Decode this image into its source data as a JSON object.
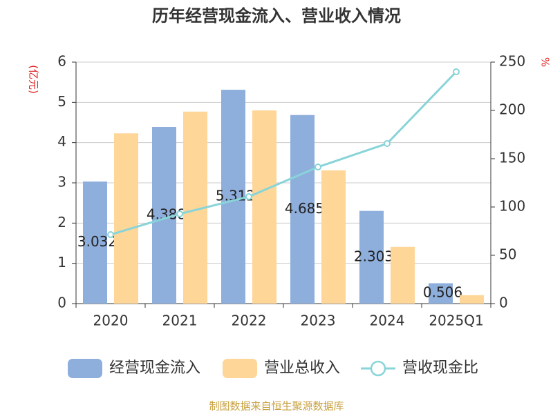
{
  "chart_data": {
    "type": "bar",
    "title": "历年经营现金流入、营业收入情况",
    "y_label": "(亿元)",
    "y2_label": "%",
    "categories": [
      "2020",
      "2021",
      "2022",
      "2023",
      "2024",
      "2025Q1"
    ],
    "series": [
      {
        "name": "经营现金流入",
        "color": "#8eaedc",
        "values": [
          3.032,
          4.388,
          5.312,
          4.685,
          2.303,
          0.506
        ]
      },
      {
        "name": "营业总收入",
        "color": "#fdd698",
        "values": [
          4.23,
          4.77,
          4.8,
          3.31,
          1.41,
          0.21
        ]
      },
      {
        "name": "营收现金比",
        "color": "#88d4d8",
        "type": "line",
        "axis": "y2",
        "values": [
          71.4,
          92.9,
          110.7,
          141.4,
          165.7,
          240
        ]
      }
    ],
    "ylim": [
      0,
      6
    ],
    "yticks": [
      0,
      1,
      2,
      3,
      4,
      5,
      6
    ],
    "y2lim": [
      0,
      250
    ],
    "y2ticks": [
      0,
      50,
      100,
      150,
      200,
      250
    ],
    "grid": true,
    "legend": "bottom",
    "source": "制图数据来自恒生聚源数据库"
  }
}
